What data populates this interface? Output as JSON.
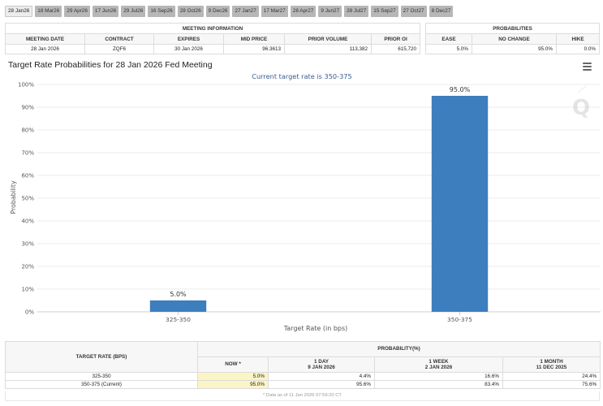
{
  "tabs": [
    {
      "label": "28 Jan26",
      "active": true
    },
    {
      "label": "18 Mar26",
      "active": false
    },
    {
      "label": "29 Apr26",
      "active": false
    },
    {
      "label": "17 Jun26",
      "active": false
    },
    {
      "label": "29 Jul26",
      "active": false
    },
    {
      "label": "16 Sep26",
      "active": false
    },
    {
      "label": "28 Oct26",
      "active": false
    },
    {
      "label": "9 Dec26",
      "active": false
    },
    {
      "label": "27 Jan27",
      "active": false
    },
    {
      "label": "17 Mar27",
      "active": false
    },
    {
      "label": "28 Apr27",
      "active": false
    },
    {
      "label": "9 Jun27",
      "active": false
    },
    {
      "label": "28 Jul27",
      "active": false
    },
    {
      "label": "15 Sep27",
      "active": false
    },
    {
      "label": "27 Oct27",
      "active": false
    },
    {
      "label": "8 Dec27",
      "active": false
    }
  ],
  "meeting_info": {
    "caption": "MEETING INFORMATION",
    "headers": [
      "MEETING DATE",
      "CONTRACT",
      "EXPIRES",
      "MID PRICE",
      "PRIOR VOLUME",
      "PRIOR OI"
    ],
    "values": [
      "28 Jan 2026",
      "ZQF6",
      "30 Jan 2026",
      "96.3613",
      "113,382",
      "615,720"
    ]
  },
  "probabilities": {
    "caption": "PROBABILITIES",
    "headers": [
      "EASE",
      "NO CHANGE",
      "HIKE"
    ],
    "values": [
      "5.0%",
      "95.0%",
      "0.0%"
    ]
  },
  "chart": {
    "title": "Target Rate Probabilities for 28 Jan 2026 Fed Meeting",
    "menu_icon": "hamburger-menu-icon",
    "watermark_icon": "q-logo-icon"
  },
  "chart_data": {
    "type": "bar",
    "title": "Target Rate Probabilities for 28 Jan 2026 Fed Meeting",
    "subtitle": "Current target rate is 350-375",
    "categories": [
      "325-350",
      "350-375"
    ],
    "values": [
      5.0,
      95.0
    ],
    "data_labels": [
      "5.0%",
      "95.0%"
    ],
    "xlabel": "Target Rate (in bps)",
    "ylabel": "Probability",
    "ylim": [
      0,
      100
    ],
    "yticks": [
      "0%",
      "10%",
      "20%",
      "30%",
      "40%",
      "50%",
      "60%",
      "70%",
      "80%",
      "90%",
      "100%"
    ],
    "grid": true,
    "bar_color": "#3d7ebf"
  },
  "bottom_table": {
    "target_header": "TARGET RATE (BPS)",
    "prob_header": "PROBABILITY(%)",
    "cols": [
      {
        "l1": "NOW *",
        "l2": ""
      },
      {
        "l1": "1 DAY",
        "l2": "9 JAN 2026"
      },
      {
        "l1": "1 WEEK",
        "l2": "2 JAN 2026"
      },
      {
        "l1": "1 MONTH",
        "l2": "11 DEC 2025"
      }
    ],
    "rows": [
      {
        "rate": "325-350",
        "values": [
          "5.0%",
          "4.4%",
          "16.6%",
          "24.4%"
        ]
      },
      {
        "rate": "350-375 (Current)",
        "values": [
          "95.0%",
          "95.6%",
          "83.4%",
          "75.6%"
        ]
      }
    ],
    "footnote": "* Data as of 11 Jan 2026 07:59:20 CT"
  }
}
